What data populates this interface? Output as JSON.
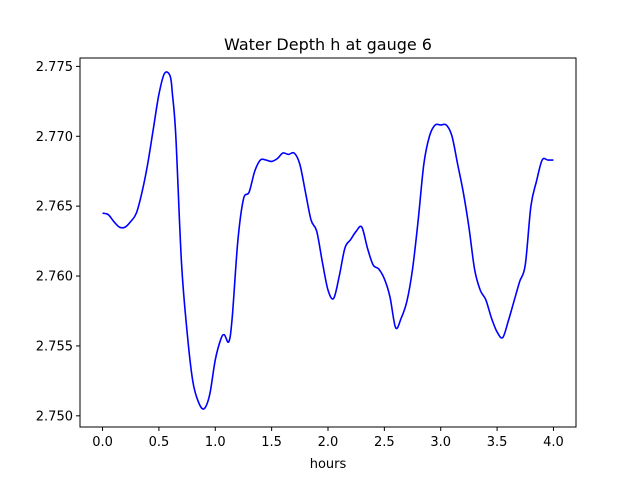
{
  "chart_data": {
    "type": "line",
    "title": "Water Depth h at gauge 6",
    "xlabel": "hours",
    "ylabel": "",
    "xlim": [
      -0.2,
      4.2
    ],
    "ylim": [
      2.7492,
      2.7756
    ],
    "xticks": [
      0.0,
      0.5,
      1.0,
      1.5,
      2.0,
      2.5,
      3.0,
      3.5,
      4.0
    ],
    "xtick_labels": [
      "0.0",
      "0.5",
      "1.0",
      "1.5",
      "2.0",
      "2.5",
      "3.0",
      "3.5",
      "4.0"
    ],
    "yticks": [
      2.75,
      2.755,
      2.76,
      2.765,
      2.77,
      2.775
    ],
    "ytick_labels": [
      "2.750",
      "2.755",
      "2.760",
      "2.765",
      "2.770",
      "2.775"
    ],
    "grid": false,
    "series": [
      {
        "color": "#0000ff",
        "x": [
          0.0,
          0.05,
          0.1,
          0.15,
          0.2,
          0.25,
          0.3,
          0.35,
          0.4,
          0.45,
          0.5,
          0.55,
          0.6,
          0.62,
          0.65,
          0.7,
          0.75,
          0.8,
          0.85,
          0.9,
          0.95,
          1.0,
          1.05,
          1.08,
          1.12,
          1.15,
          1.2,
          1.25,
          1.3,
          1.35,
          1.4,
          1.45,
          1.5,
          1.55,
          1.6,
          1.65,
          1.7,
          1.75,
          1.8,
          1.85,
          1.9,
          1.95,
          2.0,
          2.05,
          2.1,
          2.15,
          2.2,
          2.25,
          2.3,
          2.35,
          2.4,
          2.45,
          2.5,
          2.55,
          2.6,
          2.65,
          2.7,
          2.75,
          2.8,
          2.85,
          2.9,
          2.95,
          3.0,
          3.05,
          3.1,
          3.15,
          3.2,
          3.25,
          3.3,
          3.35,
          3.4,
          3.45,
          3.5,
          3.55,
          3.6,
          3.65,
          3.7,
          3.75,
          3.8,
          3.85,
          3.9,
          3.95,
          4.0
        ],
        "y": [
          2.7645,
          2.7644,
          2.7639,
          2.7635,
          2.7635,
          2.7639,
          2.7645,
          2.766,
          2.768,
          2.7705,
          2.773,
          2.7745,
          2.7743,
          2.773,
          2.77,
          2.761,
          2.756,
          2.7525,
          2.751,
          2.7505,
          2.7515,
          2.754,
          2.7555,
          2.7558,
          2.7553,
          2.757,
          2.7625,
          2.7655,
          2.766,
          2.7675,
          2.7683,
          2.7683,
          2.7682,
          2.7684,
          2.7688,
          2.7687,
          2.7688,
          2.768,
          2.766,
          2.764,
          2.7632,
          2.761,
          2.759,
          2.7584,
          2.76,
          2.762,
          2.7626,
          2.7632,
          2.7635,
          2.762,
          2.7608,
          2.7605,
          2.7598,
          2.7585,
          2.7563,
          2.757,
          2.7582,
          2.7605,
          2.764,
          2.768,
          2.77,
          2.7708,
          2.7708,
          2.7708,
          2.77,
          2.768,
          2.766,
          2.7635,
          2.7605,
          2.759,
          2.7583,
          2.757,
          2.756,
          2.7556,
          2.7568,
          2.7582,
          2.7596,
          2.7608,
          2.765,
          2.7668,
          2.7683,
          2.7683,
          2.7683
        ]
      }
    ]
  }
}
